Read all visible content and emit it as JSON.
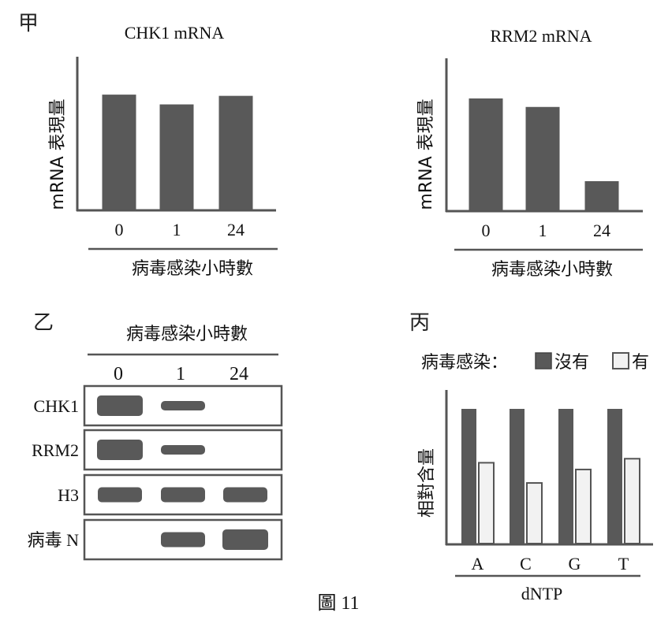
{
  "figure": {
    "caption": "圖 11"
  },
  "panels": {
    "jia": {
      "label": "甲"
    },
    "yi": {
      "label": "乙"
    },
    "bing": {
      "label": "丙"
    }
  },
  "colors": {
    "dark_bar": "#595959",
    "light_bar": "#f2f2f2",
    "axis": "#555555",
    "band": "#595959"
  },
  "blot": {
    "xlabel": "病毒感染小時數",
    "lanes": [
      "0",
      "1",
      "24"
    ],
    "rows": [
      {
        "name": "CHK1",
        "bands": [
          "large",
          "small",
          "none"
        ]
      },
      {
        "name": "RRM2",
        "bands": [
          "large",
          "small",
          "none"
        ]
      },
      {
        "name": "H3",
        "bands": [
          "medium",
          "medium",
          "medium"
        ]
      },
      {
        "name": "病毒 N",
        "bands": [
          "none",
          "medium",
          "large"
        ]
      }
    ]
  },
  "chart_data": [
    {
      "type": "bar",
      "title": "CHK1 mRNA",
      "ylabel": "mRNA 表現量",
      "xlabel": "病毒感染小時數",
      "categories": [
        "0",
        "1",
        "24"
      ],
      "values": [
        0.94,
        0.86,
        0.93
      ],
      "ylim": [
        0,
        1.25
      ]
    },
    {
      "type": "bar",
      "title": "RRM2 mRNA",
      "ylabel": "mRNA 表現量",
      "xlabel": "病毒感染小時數",
      "categories": [
        "0",
        "1",
        "24"
      ],
      "values": [
        0.92,
        0.85,
        0.24
      ],
      "ylim": [
        0,
        1.25
      ]
    },
    {
      "type": "bar",
      "ylabel": "相對含量",
      "xlabel": "dNTP",
      "legend_title": "病毒感染：",
      "categories": [
        "A",
        "C",
        "G",
        "T"
      ],
      "series": [
        {
          "name": "沒有",
          "values": [
            1.0,
            1.0,
            1.0,
            1.0
          ]
        },
        {
          "name": "有",
          "values": [
            0.6,
            0.45,
            0.55,
            0.63
          ]
        }
      ],
      "ylim": [
        0,
        1.0
      ]
    }
  ]
}
